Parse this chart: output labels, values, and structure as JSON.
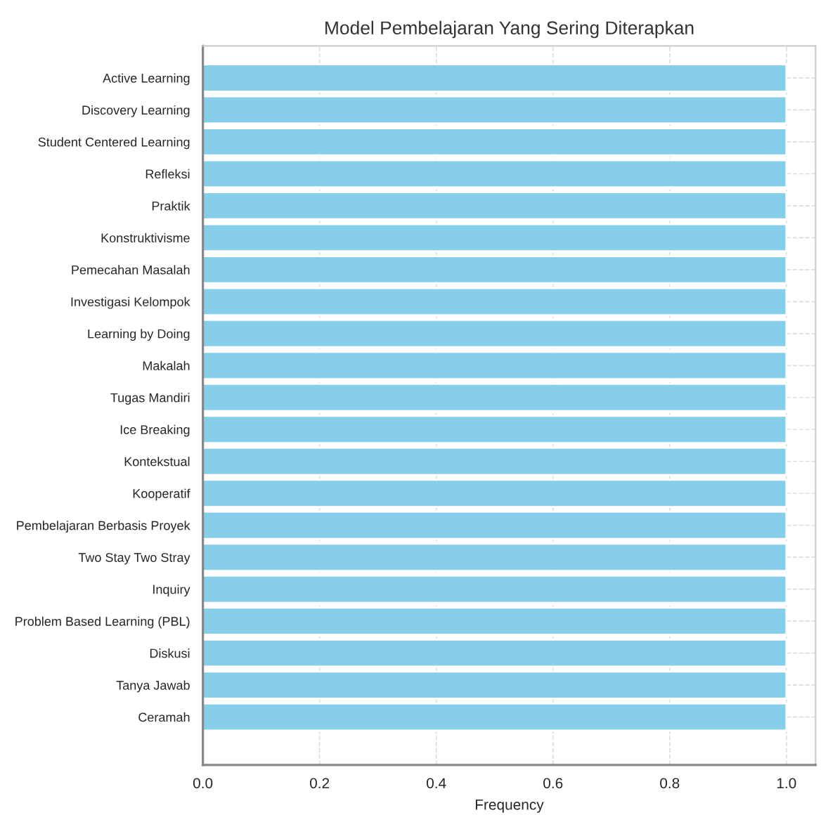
{
  "chart_data": {
    "type": "bar",
    "orientation": "horizontal",
    "title": "Model Pembelajaran Yang Sering Diterapkan",
    "xlabel": "Frequency",
    "categories": [
      "Active Learning",
      "Discovery Learning",
      "Student Centered Learning",
      "Refleksi",
      "Praktik",
      "Konstruktivisme",
      "Pemecahan Masalah",
      "Investigasi Kelompok",
      "Learning by Doing",
      "Makalah",
      "Tugas Mandiri",
      "Ice Breaking",
      "Kontekstual",
      "Kooperatif",
      "Pembelajaran Berbasis Proyek",
      "Two Stay Two Stray",
      "Inquiry",
      "Problem Based Learning (PBL)",
      "Diskusi",
      "Tanya Jawab",
      "Ceramah"
    ],
    "values": [
      1,
      1,
      1,
      1,
      1,
      1,
      1,
      1,
      1,
      1,
      1,
      1,
      1,
      1,
      1,
      1,
      1,
      1,
      1,
      1,
      1
    ],
    "color": "#87ceeb",
    "xlim": [
      0,
      1.05
    ],
    "xticks": [
      {
        "value": 0,
        "label": "0.0"
      },
      {
        "value": 0.2,
        "label": "0.2"
      },
      {
        "value": 0.4,
        "label": "0.4"
      },
      {
        "value": 0.6,
        "label": "0.6"
      },
      {
        "value": 0.8,
        "label": "0.8"
      },
      {
        "value": 1,
        "label": "1.0"
      }
    ],
    "grid": true
  }
}
